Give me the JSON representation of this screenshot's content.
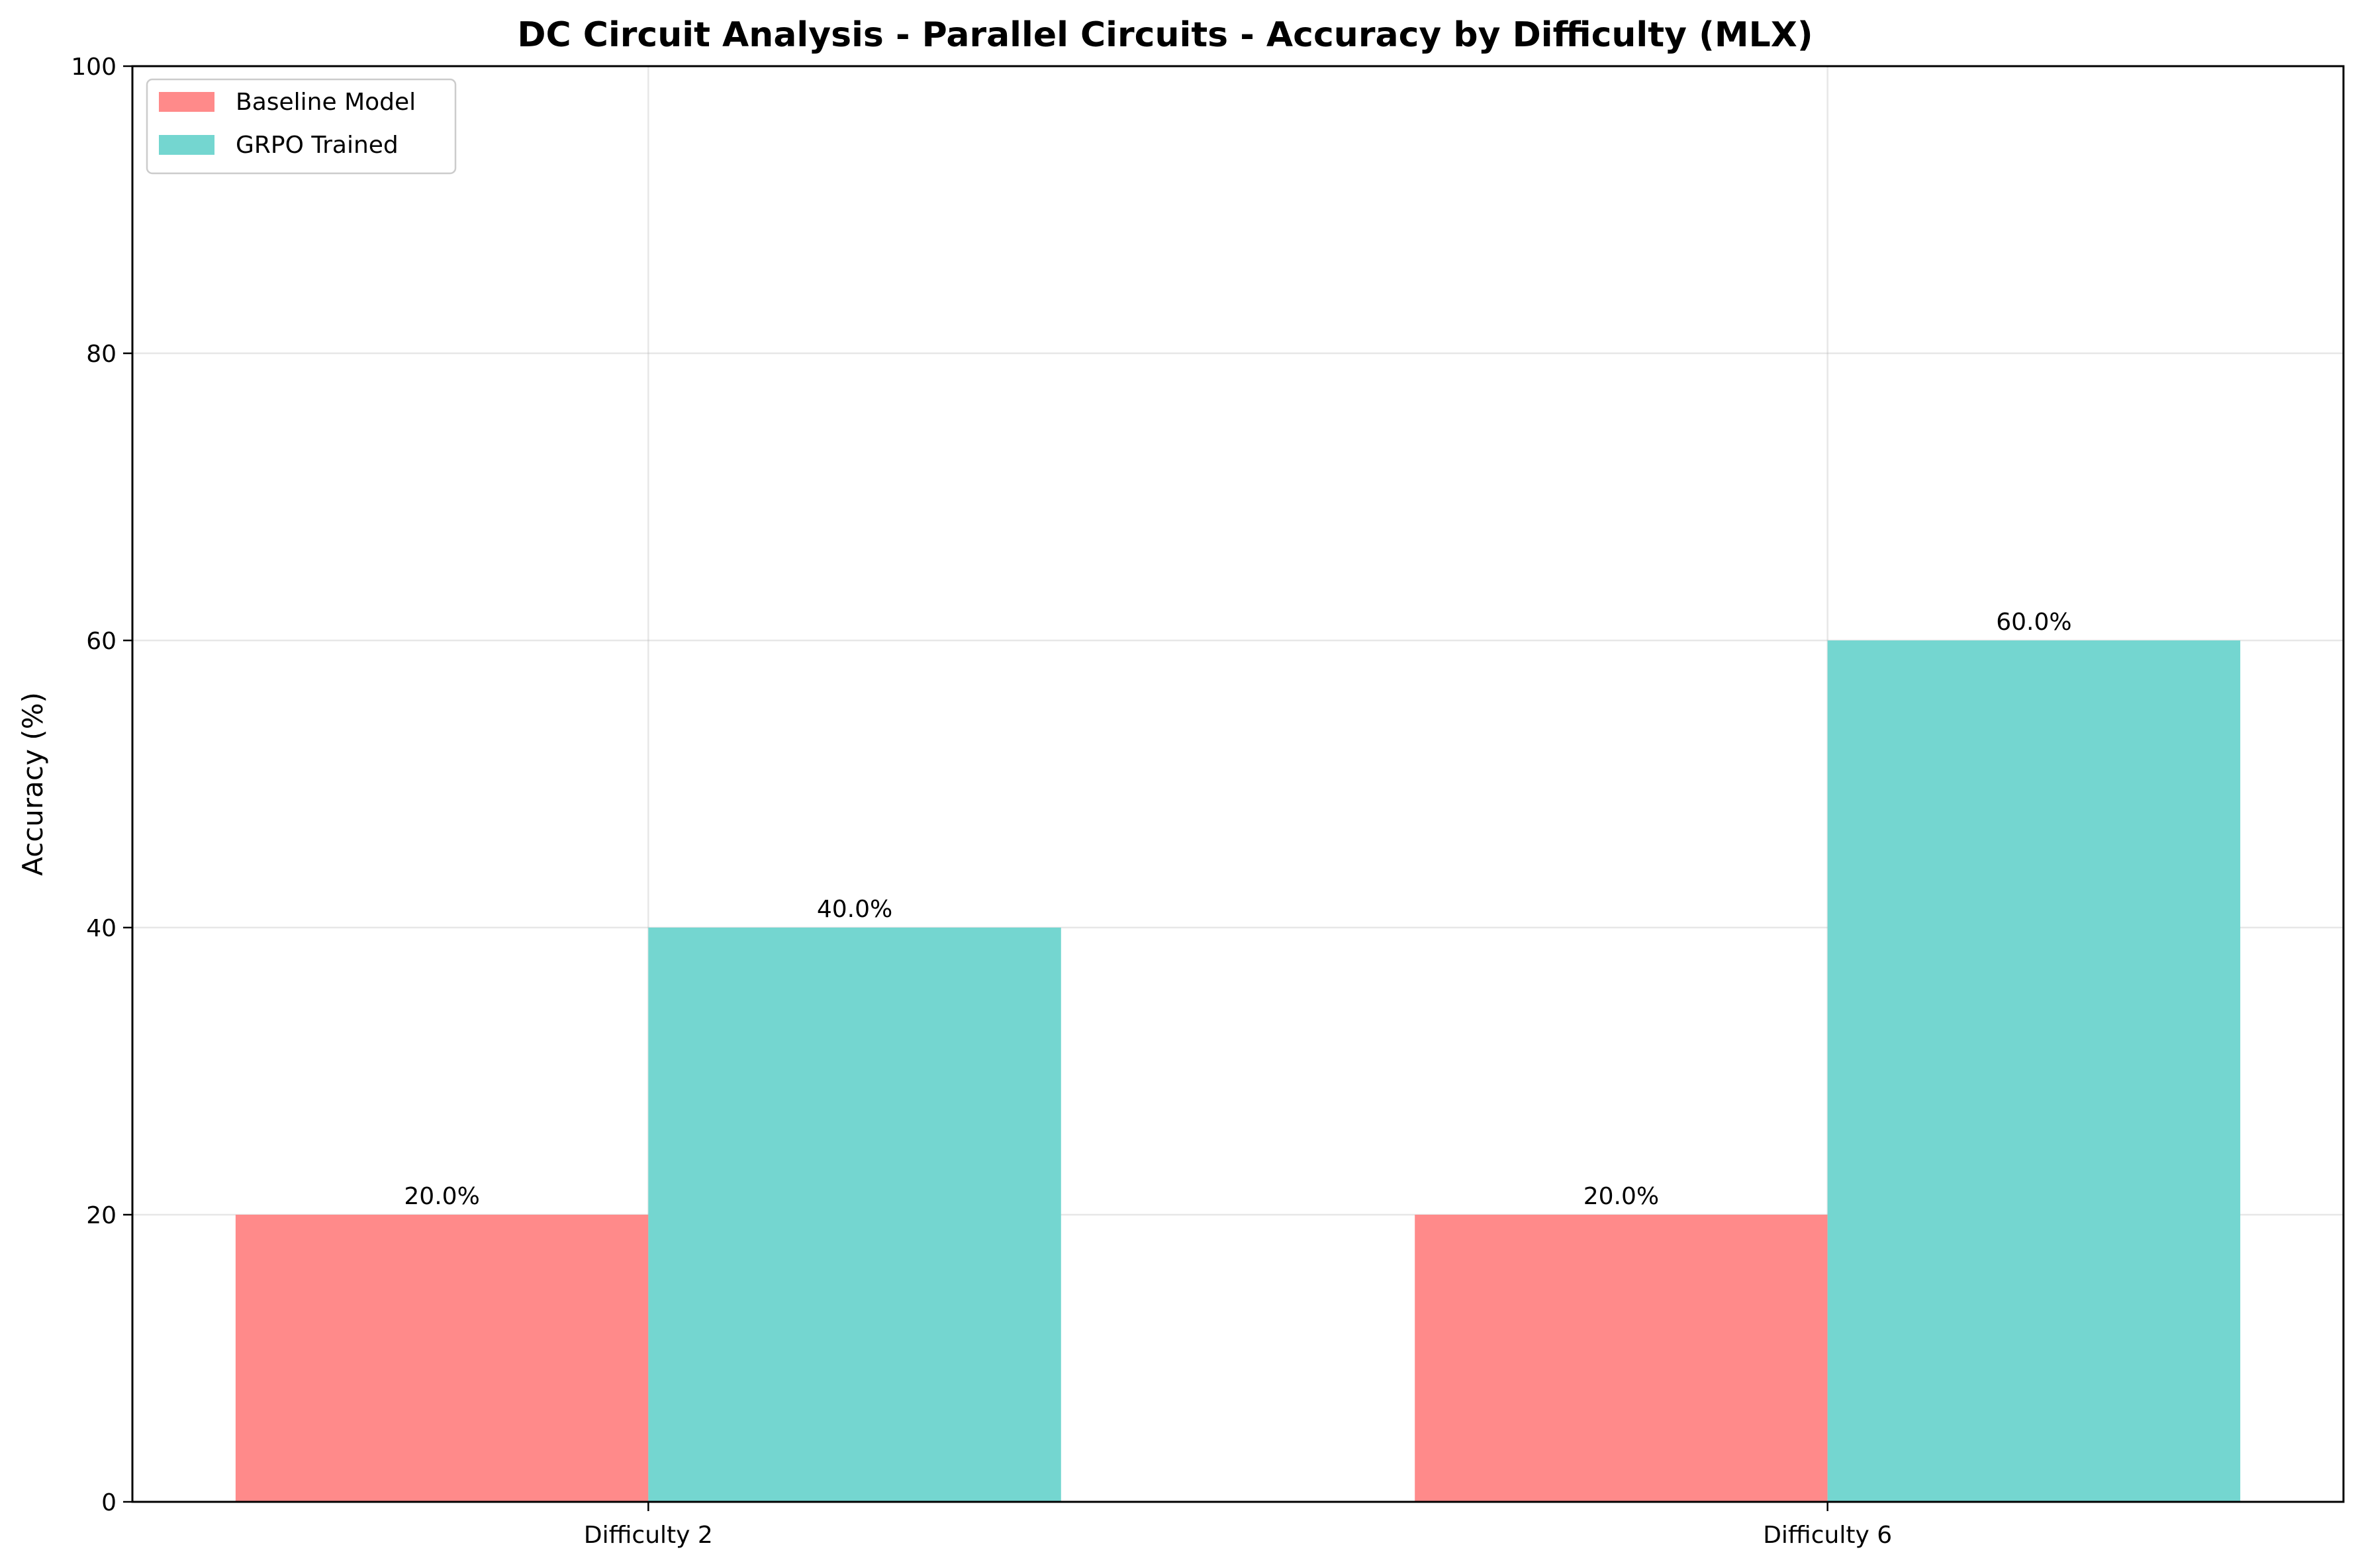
{
  "chart_data": {
    "type": "bar",
    "title": "DC Circuit Analysis - Parallel Circuits - Accuracy by Difficulty (MLX)",
    "xlabel": "",
    "ylabel": "Accuracy (%)",
    "ylim": [
      0,
      100
    ],
    "yticks": [
      0,
      20,
      40,
      60,
      80,
      100
    ],
    "grid": true,
    "legend_position": "top-left",
    "categories": [
      "Difficulty 2",
      "Difficulty 6"
    ],
    "series": [
      {
        "name": "Baseline Model",
        "color": "#ff8a8a",
        "values": [
          20.0,
          20.0
        ],
        "labels": [
          "20.0%",
          "20.0%"
        ]
      },
      {
        "name": "GRPO Trained",
        "color": "#74d6d0",
        "values": [
          40.0,
          60.0
        ],
        "labels": [
          "40.0%",
          "60.0%"
        ]
      }
    ]
  }
}
